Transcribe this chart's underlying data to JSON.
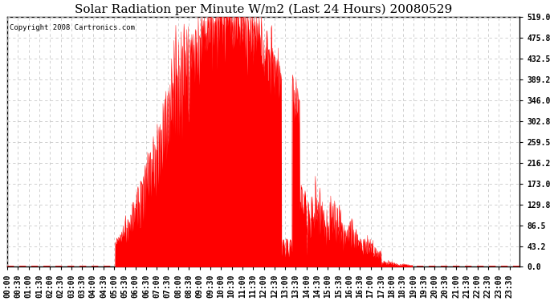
{
  "title": "Solar Radiation per Minute W/m2 (Last 24 Hours) 20080529",
  "copyright_text": "Copyright 2008 Cartronics.com",
  "yticks": [
    0.0,
    43.2,
    86.5,
    129.8,
    173.0,
    216.2,
    259.5,
    302.8,
    346.0,
    389.2,
    432.5,
    475.8,
    519.0
  ],
  "ymax": 519.0,
  "ymin": 0.0,
  "fill_color": "#FF0000",
  "line_color": "#FF0000",
  "dashed_line_color": "#FF0000",
  "background_color": "#FFFFFF",
  "grid_color": "#C8C8C8",
  "title_fontsize": 11,
  "tick_fontsize": 7,
  "copyright_fontsize": 6.5
}
